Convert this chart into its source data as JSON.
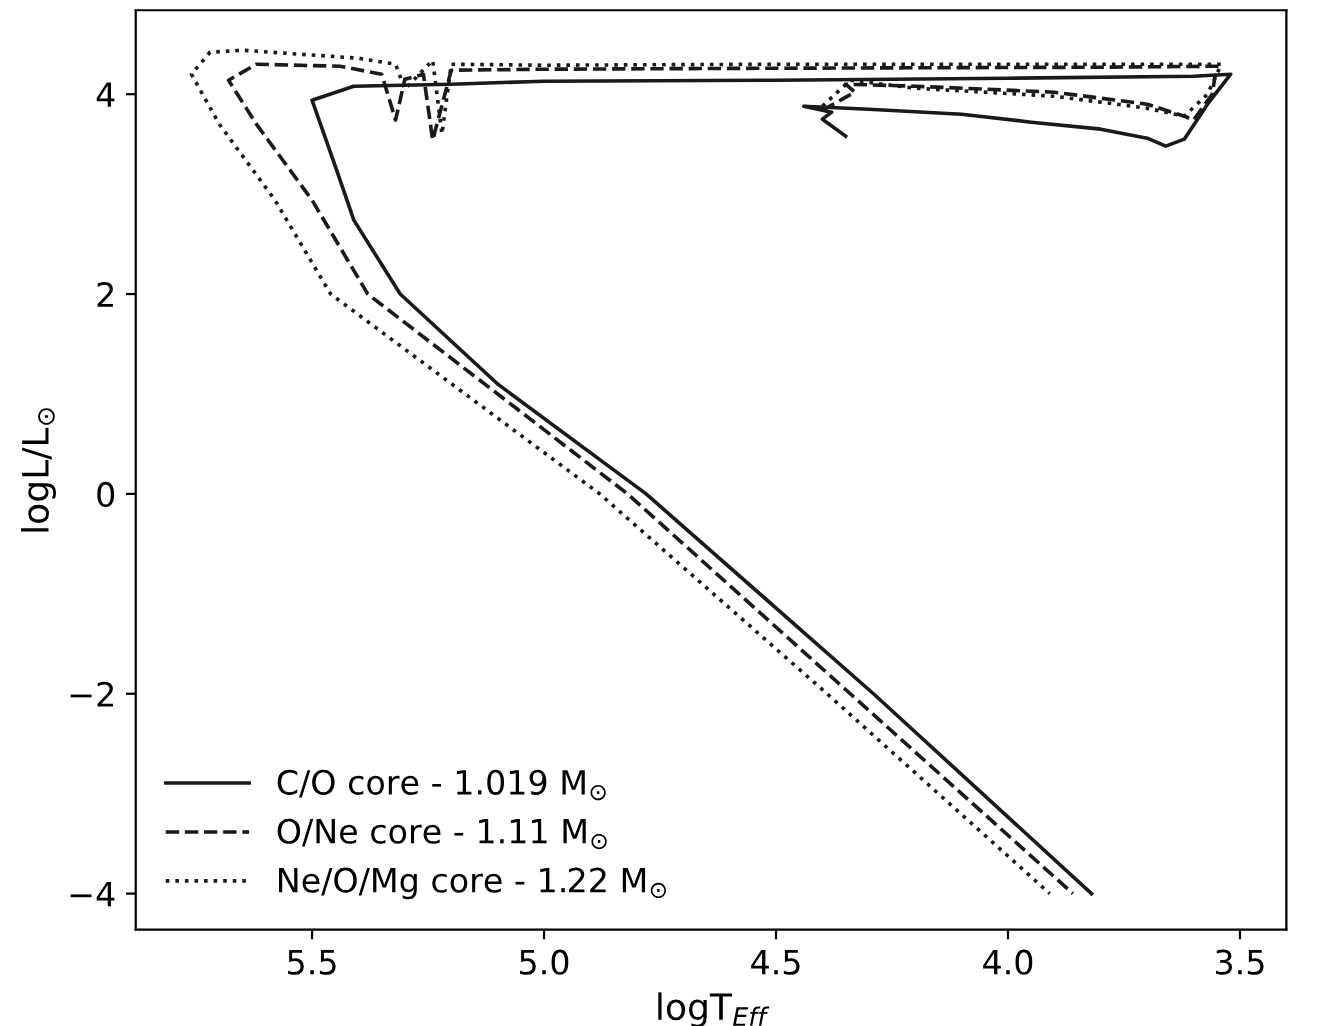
{
  "chart_data": {
    "type": "line",
    "xlabel": "logT$_{Eff}$",
    "ylabel": "logL/L$_{⊙}$",
    "xlim": [
      5.88,
      3.4
    ],
    "ylim": [
      -4.36,
      4.84
    ],
    "xticks": [
      5.5,
      {
        "value": 5,
        "label": "5.0"
      },
      4.5,
      {
        "value": 4,
        "label": "4.0"
      },
      3.5
    ],
    "yticks": [
      -4,
      -2,
      0,
      2,
      4
    ],
    "grid": false,
    "legend": "bottom left",
    "marker": "none",
    "series": [
      {
        "name": "C/O core - 1.019 M$_{⊙}$",
        "color": "#1a1a1a",
        "line_style": "solid",
        "x": [
          4.35,
          4.4,
          4.38,
          4.44,
          4.3,
          4.1,
          3.95,
          3.8,
          3.7,
          3.66,
          3.62,
          3.57,
          3.52,
          3.6,
          4.0,
          4.5,
          5.0,
          5.2,
          5.41,
          5.5,
          5.45,
          5.41,
          5.31,
          5.1,
          4.78,
          4.29,
          3.82
        ],
        "values": [
          3.58,
          3.75,
          3.82,
          3.88,
          3.85,
          3.8,
          3.72,
          3.65,
          3.56,
          3.48,
          3.55,
          3.9,
          4.2,
          4.18,
          4.16,
          4.14,
          4.13,
          4.1,
          4.08,
          3.94,
          3.28,
          2.74,
          2.0,
          1.1,
          0,
          -2,
          -4
        ]
      },
      {
        "name": "O/Ne core - 1.11 M$_{⊙}$",
        "color": "#1a1a1a",
        "line_style": "dashed",
        "x": [
          4.4,
          4.33,
          4.35,
          4.2,
          3.9,
          3.7,
          3.62,
          3.6,
          3.56,
          3.55,
          3.8,
          4.5,
          5.0,
          5.2,
          5.24,
          5.26,
          5.3,
          5.32,
          5.35,
          5.44,
          5.62,
          5.68,
          5.62,
          5.5,
          5.38,
          4.82,
          4.34,
          3.86
        ],
        "values": [
          3.84,
          4.02,
          4.1,
          4.08,
          4.02,
          3.9,
          3.78,
          3.74,
          4.0,
          4.28,
          4.27,
          4.26,
          4.25,
          4.24,
          3.54,
          4.2,
          4.15,
          3.74,
          4.2,
          4.28,
          4.3,
          4.14,
          3.7,
          2.94,
          2.0,
          0,
          -2,
          -4
        ]
      },
      {
        "name": "Ne/O/Mg core - 1.22 M$_{⊙}$",
        "color": "#1a1a1a",
        "line_style": "dotted",
        "x": [
          4.4,
          4.34,
          4.2,
          3.9,
          3.7,
          3.62,
          3.57,
          3.54,
          3.8,
          4.5,
          5.0,
          5.2,
          5.22,
          5.24,
          5.3,
          5.32,
          5.4,
          5.65,
          5.72,
          5.76,
          5.7,
          5.58,
          5.46,
          4.88,
          4.39,
          3.91
        ],
        "values": [
          3.88,
          4.14,
          4.06,
          3.98,
          3.86,
          3.78,
          4.0,
          4.3,
          4.3,
          4.3,
          4.29,
          4.3,
          3.6,
          4.34,
          4.05,
          4.3,
          4.36,
          4.44,
          4.42,
          4.2,
          3.7,
          2.94,
          2.0,
          0,
          -2,
          -4
        ]
      }
    ]
  }
}
